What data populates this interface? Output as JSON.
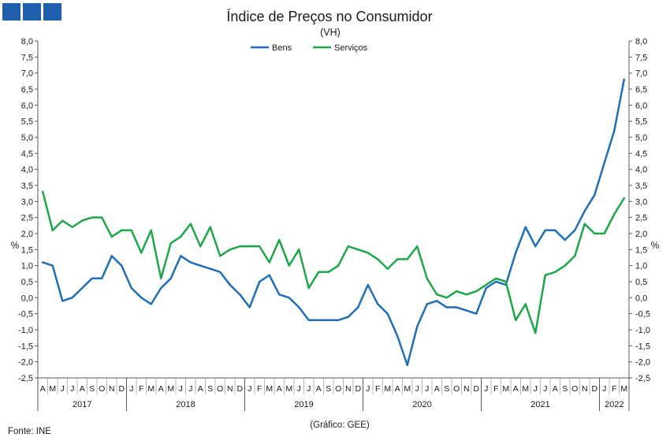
{
  "logo": {
    "color": "#1f5fad"
  },
  "chart_data": {
    "type": "line",
    "title": "Índice de Preços no Consumidor",
    "subtitle": "(VH)",
    "ylabel": "%",
    "ylim": [
      -2.5,
      8.0
    ],
    "yticks": [
      "8,0",
      "7,5",
      "7,0",
      "6,5",
      "6,0",
      "5,5",
      "5,0",
      "4,5",
      "4,0",
      "3,5",
      "3,0",
      "2,5",
      "2,0",
      "1,5",
      "1,0",
      "0,5",
      "0,0",
      "-0,5",
      "-1,0",
      "-1,5",
      "-2,0",
      "-2,5"
    ],
    "y_axis_right": true,
    "grid": false,
    "legend_position": "top-center",
    "x_axis": {
      "groups": [
        {
          "year": "2017",
          "months": [
            "A",
            "M",
            "J",
            "J",
            "A",
            "S",
            "O",
            "N",
            "D"
          ]
        },
        {
          "year": "2018",
          "months": [
            "J",
            "F",
            "M",
            "A",
            "M",
            "J",
            "J",
            "A",
            "S",
            "O",
            "N",
            "D"
          ]
        },
        {
          "year": "2019",
          "months": [
            "J",
            "F",
            "M",
            "A",
            "M",
            "J",
            "J",
            "A",
            "S",
            "O",
            "N",
            "D"
          ]
        },
        {
          "year": "2020",
          "months": [
            "J",
            "F",
            "M",
            "A",
            "M",
            "J",
            "J",
            "A",
            "S",
            "O",
            "N",
            "D"
          ]
        },
        {
          "year": "2021",
          "months": [
            "J",
            "F",
            "M",
            "A",
            "M",
            "J",
            "J",
            "A",
            "S",
            "O",
            "N",
            "D"
          ]
        },
        {
          "year": "2022",
          "months": [
            "J",
            "F",
            "M"
          ]
        }
      ]
    },
    "series": [
      {
        "name": "Bens",
        "color": "#1f6eb6",
        "values": [
          1.1,
          1.0,
          -0.1,
          0.0,
          0.3,
          0.6,
          0.6,
          1.3,
          1.0,
          0.3,
          0.0,
          -0.2,
          0.3,
          0.6,
          1.3,
          1.1,
          1.0,
          0.9,
          0.8,
          0.4,
          0.1,
          -0.3,
          0.5,
          0.7,
          0.1,
          0.0,
          -0.3,
          -0.7,
          -0.7,
          -0.7,
          -0.7,
          -0.6,
          -0.3,
          0.4,
          -0.2,
          -0.5,
          -1.2,
          -2.1,
          -0.9,
          -0.2,
          -0.1,
          -0.3,
          -0.3,
          -0.4,
          -0.5,
          0.3,
          0.5,
          0.4,
          1.4,
          2.2,
          1.6,
          2.1,
          2.1,
          1.8,
          2.1,
          2.7,
          3.2,
          4.2,
          5.2,
          6.8
        ]
      },
      {
        "name": "Serviços",
        "color": "#1fa64b",
        "values": [
          3.3,
          2.1,
          2.4,
          2.2,
          2.4,
          2.5,
          2.5,
          1.9,
          2.1,
          2.1,
          1.4,
          2.1,
          0.6,
          1.7,
          1.9,
          2.3,
          1.6,
          2.2,
          1.3,
          1.5,
          1.6,
          1.6,
          1.6,
          1.1,
          1.8,
          1.0,
          1.5,
          0.3,
          0.8,
          0.8,
          1.0,
          1.6,
          1.5,
          1.4,
          1.2,
          0.9,
          1.2,
          1.2,
          1.6,
          0.6,
          0.1,
          0.0,
          0.2,
          0.1,
          0.2,
          0.4,
          0.6,
          0.5,
          -0.7,
          -0.2,
          -1.1,
          0.7,
          0.8,
          1.0,
          1.3,
          2.3,
          2.0,
          2.0,
          2.6,
          3.1
        ]
      }
    ]
  },
  "footer": {
    "source": "Fonte: INE",
    "credit": "(Gráfico: GEE)"
  }
}
